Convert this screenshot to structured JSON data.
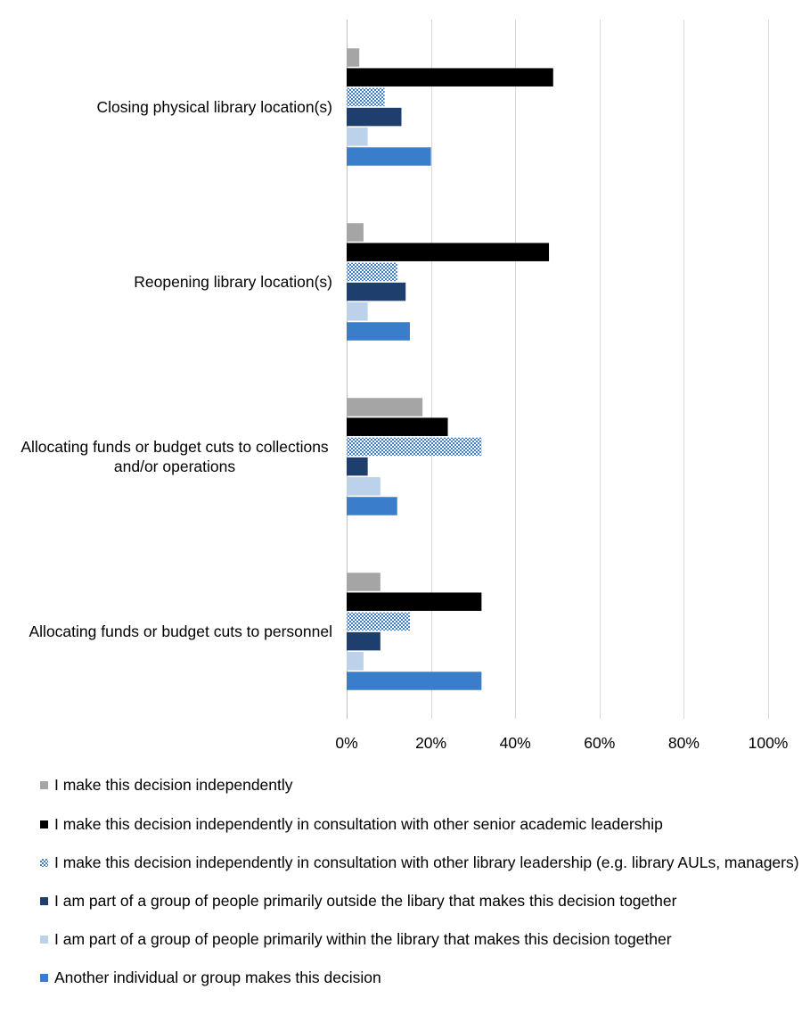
{
  "chart_data": {
    "type": "bar",
    "orientation": "horizontal",
    "categories": [
      "Closing physical library location(s)",
      "Reopening library location(s)",
      "Allocating funds or budget cuts to collections and/or operations",
      "Allocating funds or budget cuts to personnel"
    ],
    "category_lines": [
      [
        "Closing physical library location(s)"
      ],
      [
        "Reopening library location(s)"
      ],
      [
        "Allocating funds or budget cuts to collections",
        "and/or operations"
      ],
      [
        "Allocating funds or budget cuts to personnel"
      ]
    ],
    "series": [
      {
        "name": "I make this decision independently",
        "color": "#a5a5a5",
        "pattern": "solid",
        "values": [
          3,
          4,
          18,
          8
        ]
      },
      {
        "name": "I make this decision independently in consultation with other senior academic leadership",
        "color": "#000000",
        "pattern": "solid",
        "values": [
          49,
          48,
          24,
          32
        ]
      },
      {
        "name": "I make this decision independently in consultation with other library leadership (e.g. library AULs, managers)",
        "color": "#3c7ec9",
        "pattern": "checker",
        "values": [
          9,
          12,
          32,
          15
        ]
      },
      {
        "name": "I am part of a group of people primarily outside the libary that makes this decision together",
        "color": "#1e3f6e",
        "pattern": "solid",
        "values": [
          13,
          14,
          5,
          8
        ]
      },
      {
        "name": "I am part of a group of people primarily within the library that makes this decision together",
        "color": "#bcd2ea",
        "pattern": "solid",
        "values": [
          5,
          5,
          8,
          4
        ]
      },
      {
        "name": "Another individual or group makes this decision",
        "color": "#3a7dcb",
        "pattern": "solid",
        "values": [
          20,
          15,
          12,
          32
        ]
      }
    ],
    "x_ticks": [
      "0%",
      "20%",
      "40%",
      "60%",
      "80%",
      "100%"
    ],
    "xlim": [
      0,
      100
    ],
    "grid": true,
    "legend_position": "bottom",
    "title": "",
    "xlabel": "",
    "ylabel": ""
  }
}
